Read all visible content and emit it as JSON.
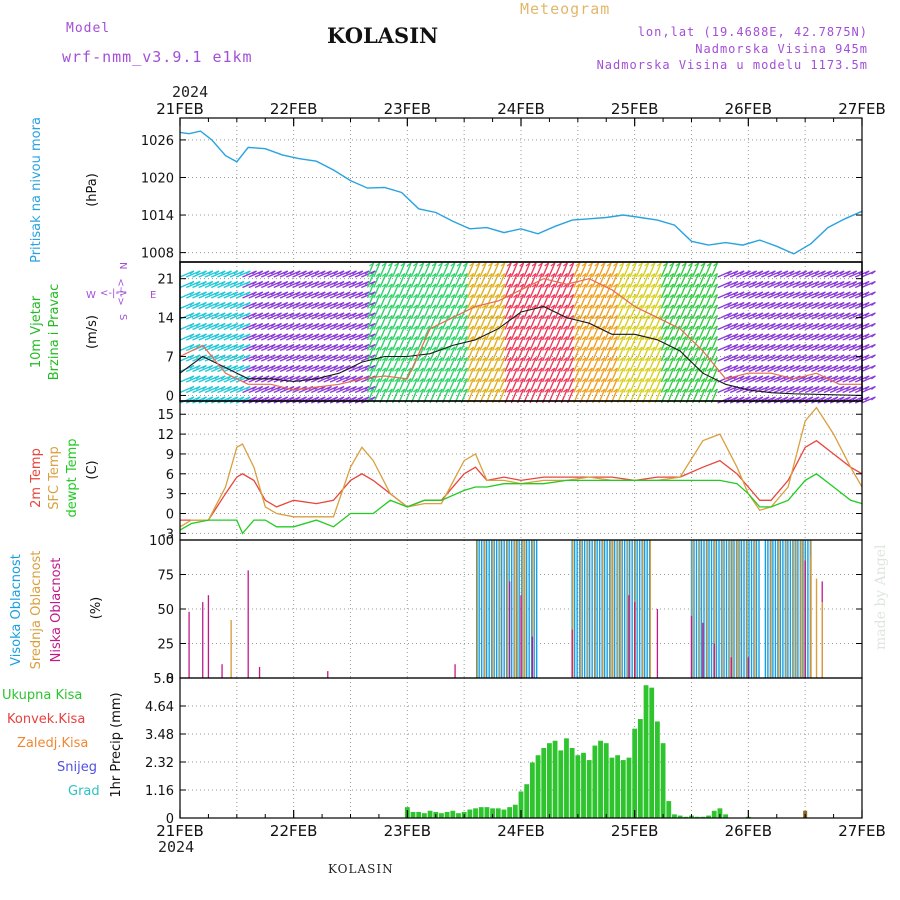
{
  "header": {
    "model_label": "Model",
    "model_name": "wrf-nmm_v3.9.1 e1km",
    "station": "KOLASIN",
    "product": "Meteogram",
    "lonlat": "lon,lat (19.4688E, 42.7875N)",
    "elevation": "Nadmorska Visina 945m",
    "model_elevation": "Nadmorska Visina u modelu 1173.5m",
    "year": "2024"
  },
  "footer": {
    "station": "KOLASIN",
    "watermark": "made by Angel"
  },
  "colors": {
    "pressure": "#29a3e0",
    "wind_speed": "#1a1a1a",
    "wind_gust": "#e86a50",
    "temp2m": "#e8463c",
    "sfc_temp": "#d9a040",
    "dewpoint": "#22cc22",
    "cloud_high": "#1a9ee0",
    "cloud_mid": "#d9a040",
    "cloud_low": "#c2188a",
    "precip_total": "#2ec42e",
    "precip_conv": "#e84040",
    "precip_frozen": "#ee8833",
    "snow": "#5050e0",
    "hail": "#30c0c0"
  },
  "chart_data": [
    {
      "type": "line",
      "title": "",
      "ylabel": [
        "Pritisak na nivou mora",
        "(hPa)"
      ],
      "x_tick_labels": [
        "21FEB",
        "22FEB",
        "23FEB",
        "24FEB",
        "25FEB",
        "26FEB",
        "27FEB"
      ],
      "x_days": [
        0,
        1,
        2,
        3,
        4,
        5,
        6
      ],
      "yticks": [
        1008,
        1014,
        1020,
        1026
      ],
      "ylim": [
        1006.5,
        1029.5
      ],
      "grid": true,
      "series": [
        {
          "key": "pressure",
          "x": [
            0,
            0.08,
            0.18,
            0.28,
            0.4,
            0.5,
            0.6,
            0.75,
            0.9,
            1.05,
            1.2,
            1.35,
            1.5,
            1.65,
            1.8,
            1.95,
            2.1,
            2.25,
            2.4,
            2.55,
            2.7,
            2.85,
            3.0,
            3.15,
            3.3,
            3.45,
            3.6,
            3.75,
            3.9,
            4.05,
            4.2,
            4.35,
            4.5,
            4.65,
            4.8,
            4.95,
            5.1,
            5.25,
            5.4,
            5.55,
            5.7,
            5.85,
            6.0
          ],
          "values": [
            1027.2,
            1027.0,
            1027.4,
            1026.0,
            1023.5,
            1022.5,
            1024.8,
            1024.6,
            1023.6,
            1023.0,
            1022.6,
            1021.2,
            1019.5,
            1018.3,
            1018.4,
            1017.6,
            1015.0,
            1014.4,
            1013.0,
            1011.8,
            1012.0,
            1011.2,
            1011.8,
            1011.0,
            1012.2,
            1013.2,
            1013.4,
            1013.6,
            1014.0,
            1013.6,
            1013.2,
            1012.4,
            1009.8,
            1009.2,
            1009.6,
            1009.2,
            1010.0,
            1009.0,
            1007.8,
            1009.4,
            1012.0,
            1013.4,
            1014.6
          ]
        }
      ]
    },
    {
      "type": "line",
      "title": "",
      "ylabel": [
        "10m Vjetar",
        "Brzina i Pravac",
        "(m/s)"
      ],
      "direction_labels": {
        "w": "W",
        "e": "E",
        "n": "N",
        "s": "S",
        "mark": "<-|->"
      },
      "yticks": [
        0,
        7,
        14,
        21
      ],
      "ylim": [
        -1,
        24
      ],
      "grid": true,
      "barb_colormap": [
        {
          "from": 0.0,
          "to": 0.55,
          "color": "#22c8d8"
        },
        {
          "from": 0.55,
          "to": 1.6,
          "color": "#8a3ad8"
        },
        {
          "from": 1.6,
          "to": 2.5,
          "color": "#2ed36a"
        },
        {
          "from": 2.5,
          "to": 2.85,
          "color": "#e0b020"
        },
        {
          "from": 2.85,
          "to": 3.45,
          "color": "#ef3a5a"
        },
        {
          "from": 3.45,
          "to": 3.8,
          "color": "#f0a020"
        },
        {
          "from": 3.8,
          "to": 4.2,
          "color": "#d8d020"
        },
        {
          "from": 4.2,
          "to": 4.7,
          "color": "#34cc44"
        },
        {
          "from": 4.7,
          "to": 6.0,
          "color": "#8a3ad8"
        }
      ],
      "series": [
        {
          "key": "wind_speed",
          "x": [
            0,
            0.2,
            0.4,
            0.6,
            0.8,
            1.0,
            1.2,
            1.4,
            1.6,
            1.8,
            2.0,
            2.2,
            2.4,
            2.6,
            2.8,
            3.0,
            3.2,
            3.4,
            3.6,
            3.8,
            4.0,
            4.2,
            4.4,
            4.6,
            4.8,
            5.0,
            5.2,
            5.4,
            5.6,
            5.8,
            6.0
          ],
          "values": [
            4,
            7,
            5,
            3,
            3,
            2.5,
            3,
            4,
            6,
            7,
            7,
            7.5,
            9,
            10,
            12,
            15,
            16,
            14,
            13,
            11,
            11,
            10,
            8,
            4,
            2,
            1,
            0.5,
            0.3,
            0.2,
            0.1,
            0
          ]
        },
        {
          "key": "wind_gust",
          "x": [
            0,
            0.2,
            0.4,
            0.6,
            0.8,
            1.0,
            1.2,
            1.4,
            1.6,
            1.8,
            2.0,
            2.2,
            2.4,
            2.6,
            2.8,
            3.0,
            3.2,
            3.4,
            3.6,
            3.8,
            4.0,
            4.2,
            4.4,
            4.6,
            4.8,
            5.0,
            5.2,
            5.4,
            5.6,
            5.8,
            6.0
          ],
          "values": [
            7,
            9,
            4,
            2,
            2,
            1,
            1.5,
            2,
            3,
            3.5,
            3,
            12,
            14,
            16,
            17,
            19,
            21,
            20,
            21,
            19,
            16,
            14,
            12,
            8,
            3,
            4,
            4,
            3,
            4,
            2,
            2
          ]
        }
      ]
    },
    {
      "type": "line",
      "title": "",
      "ylabel": [
        "2m Temp",
        "SFC Temp",
        "dewpt Temp",
        "(C)"
      ],
      "yticks": [
        -3,
        0,
        3,
        6,
        9,
        12,
        15
      ],
      "ylim": [
        -4,
        17
      ],
      "grid": true,
      "series": [
        {
          "key": "temp2m",
          "x": [
            0,
            0.1,
            0.25,
            0.4,
            0.5,
            0.55,
            0.65,
            0.75,
            0.85,
            1.0,
            1.2,
            1.35,
            1.5,
            1.6,
            1.7,
            1.85,
            2.0,
            2.15,
            2.3,
            2.5,
            2.6,
            2.7,
            2.85,
            3.0,
            3.2,
            3.4,
            3.6,
            3.8,
            4.0,
            4.2,
            4.4,
            4.6,
            4.75,
            4.9,
            5.0,
            5.1,
            5.2,
            5.35,
            5.5,
            5.6,
            5.75,
            5.9,
            6.0
          ],
          "values": [
            -1,
            -1,
            -1,
            3,
            5.5,
            6,
            5,
            2,
            1,
            2,
            1.5,
            2,
            5,
            6,
            5,
            3,
            1,
            2,
            2,
            6,
            7,
            5,
            5.5,
            5,
            5.5,
            5.5,
            5.5,
            5.5,
            5,
            5.5,
            5.5,
            7,
            8,
            6,
            4,
            2,
            2,
            5,
            10,
            11,
            9,
            7,
            6
          ]
        },
        {
          "key": "sfc_temp",
          "x": [
            0,
            0.1,
            0.25,
            0.4,
            0.5,
            0.55,
            0.65,
            0.75,
            0.85,
            1.0,
            1.2,
            1.35,
            1.5,
            1.6,
            1.7,
            1.85,
            2.0,
            2.15,
            2.3,
            2.5,
            2.6,
            2.7,
            2.85,
            3.0,
            3.2,
            3.4,
            3.6,
            3.8,
            4.0,
            4.2,
            4.4,
            4.6,
            4.75,
            4.9,
            5.0,
            5.1,
            5.2,
            5.35,
            5.5,
            5.6,
            5.75,
            5.9,
            6.0
          ],
          "values": [
            -2,
            -1,
            -1,
            4,
            10,
            10.5,
            7,
            1,
            0,
            -0.5,
            -0.5,
            -0.5,
            7,
            10,
            8,
            3,
            1,
            1.5,
            1.5,
            8,
            9,
            5,
            5,
            4.5,
            5,
            5,
            5.5,
            5,
            5,
            5,
            5.5,
            11,
            12,
            7,
            3,
            0.5,
            1,
            4,
            14,
            16,
            12,
            7,
            4
          ]
        },
        {
          "key": "dewpoint",
          "x": [
            0,
            0.1,
            0.25,
            0.4,
            0.5,
            0.55,
            0.65,
            0.75,
            0.85,
            1.0,
            1.2,
            1.35,
            1.5,
            1.6,
            1.7,
            1.85,
            2.0,
            2.15,
            2.3,
            2.5,
            2.6,
            2.7,
            2.85,
            3.0,
            3.2,
            3.4,
            3.6,
            3.8,
            4.0,
            4.2,
            4.4,
            4.6,
            4.75,
            4.9,
            5.0,
            5.1,
            5.2,
            5.35,
            5.5,
            5.6,
            5.75,
            5.9,
            6.0
          ],
          "values": [
            -2.5,
            -1.5,
            -1,
            -1,
            -1,
            -3,
            -1,
            -1,
            -2,
            -2,
            -1,
            -2,
            0,
            0,
            0,
            2,
            1,
            2,
            2,
            3.5,
            4,
            4,
            4.5,
            4.5,
            4.5,
            5,
            5,
            5,
            5,
            5,
            5,
            5,
            5,
            4.5,
            3,
            1,
            1,
            2,
            5,
            6,
            4,
            2,
            1.5
          ]
        }
      ]
    },
    {
      "type": "bar",
      "title": "",
      "ylabel": [
        "Visoka Oblacnost",
        "Srednja Oblacnost",
        "Niska Oblacnost",
        "(%)"
      ],
      "yticks": [
        0,
        25,
        50,
        75,
        100
      ],
      "ylim": [
        0,
        100
      ],
      "grid": true,
      "overcast_blocks": [
        {
          "x0": 2.61,
          "x1": 3.15,
          "values": [
            100,
            100
          ]
        },
        {
          "x0": 3.45,
          "x1": 4.15,
          "values": [
            100,
            100
          ]
        },
        {
          "x0": 4.5,
          "x1": 5.1,
          "values": [
            100,
            100
          ]
        },
        {
          "x0": 5.15,
          "x1": 5.55,
          "values": [
            100,
            100
          ]
        }
      ],
      "low_cloud_bars": {
        "x": [
          0.08,
          0.2,
          0.25,
          0.37,
          0.6,
          0.7,
          1.3,
          2.42,
          2.9,
          3.0,
          3.1,
          3.45,
          3.95,
          4.0,
          4.2,
          4.5,
          4.6,
          4.7,
          4.85,
          5.0,
          5.5,
          5.55,
          5.65
        ],
        "values": [
          48,
          55,
          60,
          10,
          78,
          8,
          5,
          10,
          70,
          60,
          30,
          35,
          60,
          55,
          50,
          45,
          40,
          25,
          15,
          15,
          85,
          75,
          70
        ]
      },
      "mid_cloud_bars": {
        "x": [
          0.45,
          5.55,
          5.6,
          5.65
        ],
        "values": [
          42,
          88,
          72,
          55
        ]
      }
    },
    {
      "type": "bar",
      "title": "",
      "ylabel": [
        "1hr Precip (mm)"
      ],
      "legend": [
        "Ukupna Kisa",
        "Konvek.Kisa",
        "Zaledj.Kisa",
        "Snijeg",
        "Grad"
      ],
      "yticks": [
        0,
        1.16,
        2.32,
        3.48,
        4.64,
        5.8
      ],
      "ylim": [
        0,
        5.8
      ],
      "grid": true,
      "total": {
        "x": [
          2.0,
          2.05,
          2.1,
          2.15,
          2.2,
          2.25,
          2.3,
          2.35,
          2.4,
          2.45,
          2.5,
          2.55,
          2.6,
          2.65,
          2.7,
          2.75,
          2.8,
          2.85,
          2.9,
          2.95,
          3.0,
          3.05,
          3.1,
          3.15,
          3.2,
          3.25,
          3.3,
          3.35,
          3.4,
          3.45,
          3.5,
          3.55,
          3.6,
          3.65,
          3.7,
          3.75,
          3.8,
          3.85,
          3.9,
          3.95,
          4.0,
          4.05,
          4.1,
          4.15,
          4.2,
          4.25,
          4.3,
          4.35,
          4.4,
          4.45,
          4.5,
          4.55,
          4.6,
          4.65,
          4.7,
          4.75,
          4.8,
          5.0
        ],
        "values": [
          0.45,
          0.25,
          0.25,
          0.2,
          0.3,
          0.25,
          0.2,
          0.25,
          0.3,
          0.2,
          0.25,
          0.35,
          0.4,
          0.45,
          0.45,
          0.4,
          0.4,
          0.35,
          0.45,
          0.55,
          1.1,
          1.4,
          2.3,
          2.6,
          2.9,
          3.1,
          3.2,
          2.8,
          3.3,
          2.9,
          2.6,
          2.7,
          2.4,
          3.0,
          3.2,
          3.1,
          2.5,
          2.6,
          2.4,
          2.5,
          3.7,
          4.1,
          5.5,
          5.4,
          4.0,
          3.1,
          0.7,
          0.15,
          0.1,
          0.05,
          0.1,
          0.05,
          0.05,
          0.1,
          0.3,
          0.4,
          0.15,
          0.05
        ]
      },
      "frozen": {
        "x": [
          5.5
        ],
        "values": [
          0.3
        ]
      }
    }
  ]
}
